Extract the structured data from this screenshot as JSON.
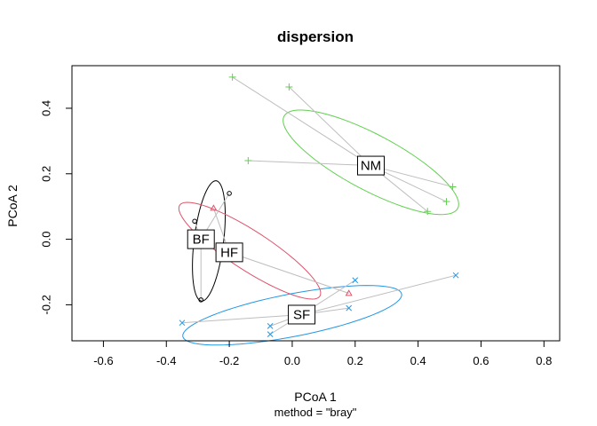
{
  "chart_data": {
    "type": "scatter",
    "title": "dispersion",
    "xlabel": "PCoA 1",
    "ylabel": "PCoA 2",
    "sub": "method = \"bray\"",
    "xlim": [
      -0.7,
      0.85
    ],
    "ylim": [
      -0.31,
      0.53
    ],
    "xticks": [
      -0.6,
      -0.4,
      -0.2,
      0.0,
      0.2,
      0.4,
      0.6,
      0.8
    ],
    "xtick_labels": [
      "-0.6",
      "-0.4",
      "-0.2",
      "0.0",
      "0.2",
      "0.4",
      "0.6",
      "0.8"
    ],
    "yticks": [
      -0.2,
      0.0,
      0.2,
      0.4
    ],
    "ytick_labels": [
      "-0.2",
      "0.0",
      "0.2",
      "0.4"
    ],
    "grid": false,
    "legend": "none",
    "groups": [
      {
        "label": "BF",
        "color": "#000000",
        "marker": "circle",
        "centroid": [
          -0.29,
          0.0
        ],
        "points": [
          [
            -0.31,
            0.055
          ],
          [
            -0.2,
            0.14
          ],
          [
            -0.29,
            -0.185
          ]
        ],
        "ellipse": {
          "center": [
            -0.265,
            -0.005
          ],
          "a": 0.185,
          "b": 0.045,
          "angle_deg": 83
        }
      },
      {
        "label": "HF",
        "color": "#DF536B",
        "marker": "triangle",
        "centroid": [
          -0.2,
          -0.04
        ],
        "points": [
          [
            -0.25,
            0.095
          ],
          [
            0.18,
            -0.165
          ]
        ],
        "ellipse": {
          "center": [
            -0.135,
            -0.035
          ],
          "a": 0.255,
          "b": 0.06,
          "angle_deg": -33
        }
      },
      {
        "label": "NM",
        "color": "#61D04F",
        "marker": "plus",
        "centroid": [
          0.25,
          0.225
        ],
        "points": [
          [
            -0.19,
            0.495
          ],
          [
            -0.01,
            0.465
          ],
          [
            -0.14,
            0.24
          ],
          [
            0.43,
            0.085
          ],
          [
            0.49,
            0.115
          ],
          [
            0.51,
            0.16
          ]
        ],
        "ellipse": {
          "center": [
            0.25,
            0.235
          ],
          "a": 0.3,
          "b": 0.085,
          "angle_deg": -28
        }
      },
      {
        "label": "SF",
        "color": "#2297E6",
        "marker": "cross",
        "centroid": [
          0.03,
          -0.23
        ],
        "points": [
          [
            -0.35,
            -0.255
          ],
          [
            -0.07,
            -0.265
          ],
          [
            -0.07,
            -0.29
          ],
          [
            0.18,
            -0.21
          ],
          [
            0.2,
            -0.125
          ],
          [
            0.52,
            -0.11
          ]
        ],
        "ellipse": {
          "center": [
            0.0,
            -0.232
          ],
          "a": 0.34,
          "b": 0.065,
          "angle_deg": 11
        }
      }
    ]
  }
}
